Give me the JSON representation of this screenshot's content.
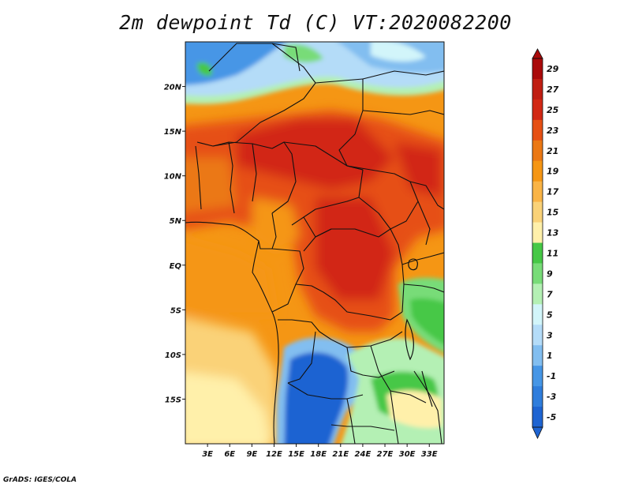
{
  "title": "2m dewpoint Td (C) VT:2020082200",
  "credit": "GrADS: IGES/COLA",
  "colors": {
    "blue_dark": "#1e64d2",
    "blue_mid": "#4696e6",
    "blue_light": "#82bef0",
    "blue_pale": "#b4dcf8",
    "cyan_pale": "#d2f5fa",
    "green_pale": "#b4f0b4",
    "green_light": "#78dc78",
    "green": "#46c846",
    "yellow_pale": "#fff0aa",
    "yellow": "#fad278",
    "orange_light": "#fab446",
    "orange": "#f59614",
    "orange_dark": "#eb7814",
    "red_orange": "#e65014",
    "red": "#d22814",
    "red_dark": "#aa0a0a"
  },
  "chart_data": {
    "type": "heatmap",
    "title": "2m dewpoint Td (C) VT:2020082200",
    "variable": "2m dewpoint",
    "units": "C",
    "valid_time": "2020082200",
    "latitude_ticks": [
      "20N",
      "15N",
      "10N",
      "5N",
      "EQ",
      "5S",
      "10S",
      "15S"
    ],
    "longitude_ticks": [
      "3E",
      "6E",
      "9E",
      "12E",
      "15E",
      "18E",
      "21E",
      "24E",
      "27E",
      "30E",
      "33E"
    ],
    "lon_range": [
      0,
      35
    ],
    "lat_range": [
      -20,
      25
    ],
    "colorbar_labels": [
      "29",
      "27",
      "25",
      "23",
      "21",
      "19",
      "17",
      "15",
      "13",
      "11",
      "9",
      "7",
      "5",
      "3",
      "1",
      "-1",
      "-3",
      "-5"
    ],
    "colorbar_colors": [
      "#aa0a0a",
      "#c01e12",
      "#d22814",
      "#e65014",
      "#eb7814",
      "#f59614",
      "#fab446",
      "#fad278",
      "#fff0aa",
      "#46c846",
      "#78dc78",
      "#b4f0b4",
      "#d2f5fa",
      "#b4dcf8",
      "#82bef0",
      "#4696e6",
      "#2f7ddc",
      "#1e64d2"
    ]
  }
}
